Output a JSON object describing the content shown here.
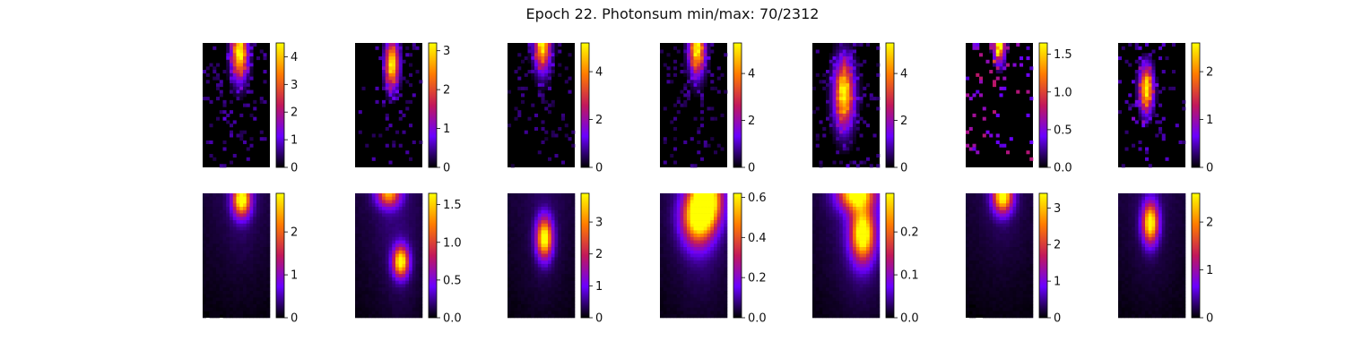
{
  "title": "Epoch 22. Photonsum min/max: 70/2312",
  "colormap": "gnuplot",
  "colormap_stops": [
    "#000000",
    "#6a00ff",
    "#c2185b",
    "#ff7b00",
    "#ffff00"
  ],
  "chart_data": {
    "type": "heatmap",
    "grid": {
      "rows": 2,
      "cols": 7
    },
    "panels": [
      {
        "row": 0,
        "col": 0,
        "kind": "photons",
        "vmax": 4.5,
        "ticks": [
          0,
          1,
          2,
          3,
          4
        ],
        "tick_labels": [
          "0",
          "1",
          "2",
          "3",
          "4"
        ],
        "blobs": [
          {
            "x": 0.55,
            "y": 0.08,
            "amp": 4.5,
            "s": 0.08
          }
        ],
        "noise": 0.5,
        "density": 0.45
      },
      {
        "row": 0,
        "col": 1,
        "kind": "photons",
        "vmax": 3.2,
        "ticks": [
          0,
          1,
          2,
          3
        ],
        "tick_labels": [
          "0",
          "1",
          "2",
          "3"
        ],
        "blobs": [
          {
            "x": 0.55,
            "y": 0.17,
            "amp": 3.2,
            "s": 0.07
          }
        ],
        "noise": 0.35,
        "density": 0.25
      },
      {
        "row": 0,
        "col": 2,
        "kind": "photons",
        "vmax": 5.2,
        "ticks": [
          0,
          2,
          4
        ],
        "tick_labels": [
          "0",
          "2",
          "4"
        ],
        "blobs": [
          {
            "x": 0.52,
            "y": 0.01,
            "amp": 5.0,
            "s": 0.08
          }
        ],
        "noise": 0.5,
        "density": 0.4
      },
      {
        "row": 0,
        "col": 3,
        "kind": "photons",
        "vmax": 5.3,
        "ticks": [
          0,
          2,
          4
        ],
        "tick_labels": [
          "0",
          "2",
          "4"
        ],
        "blobs": [
          {
            "x": 0.55,
            "y": 0.04,
            "amp": 5.2,
            "s": 0.08
          }
        ],
        "noise": 0.5,
        "density": 0.4
      },
      {
        "row": 0,
        "col": 4,
        "kind": "photons",
        "vmax": 5.3,
        "ticks": [
          0,
          2,
          4
        ],
        "tick_labels": [
          "0",
          "2",
          "4"
        ],
        "blobs": [
          {
            "x": 0.47,
            "y": 0.41,
            "amp": 5.1,
            "s": 0.1
          }
        ],
        "noise": 0.5,
        "density": 0.45
      },
      {
        "row": 0,
        "col": 5,
        "kind": "photons",
        "vmax": 1.65,
        "ticks": [
          0.0,
          0.5,
          1.0,
          1.5
        ],
        "tick_labels": [
          "0.0",
          "0.5",
          "1.0",
          "1.5"
        ],
        "blobs": [
          {
            "x": 0.5,
            "y": 0.0,
            "amp": 1.6,
            "s": 0.06
          }
        ],
        "noise": 0.5,
        "density": 0.3
      },
      {
        "row": 0,
        "col": 6,
        "kind": "photons",
        "vmax": 2.6,
        "ticks": [
          0,
          1,
          2
        ],
        "tick_labels": [
          "0",
          "1",
          "2"
        ],
        "blobs": [
          {
            "x": 0.42,
            "y": 0.37,
            "amp": 2.5,
            "s": 0.07
          }
        ],
        "noise": 0.35,
        "density": 0.25
      },
      {
        "row": 1,
        "col": 0,
        "kind": "model",
        "vmax": 2.9,
        "ticks": [
          0,
          1,
          2
        ],
        "tick_labels": [
          "0",
          "1",
          "2"
        ],
        "blobs": [
          {
            "x": 0.58,
            "y": 0.05,
            "amp": 2.85,
            "sx": 0.09,
            "sy": 0.05
          }
        ],
        "halo": 0.35
      },
      {
        "row": 1,
        "col": 1,
        "kind": "model",
        "vmax": 1.65,
        "ticks": [
          0.0,
          0.5,
          1.0,
          1.5
        ],
        "tick_labels": [
          "0.0",
          "0.5",
          "1.0",
          "1.5"
        ],
        "blobs": [
          {
            "x": 0.5,
            "y": 0.0,
            "amp": 1.2,
            "sx": 0.12,
            "sy": 0.04
          },
          {
            "x": 0.68,
            "y": 0.55,
            "amp": 1.6,
            "sx": 0.08,
            "sy": 0.045
          }
        ],
        "halo": 0.3
      },
      {
        "row": 1,
        "col": 2,
        "kind": "model",
        "vmax": 3.9,
        "ticks": [
          0,
          1,
          2,
          3
        ],
        "tick_labels": [
          "0",
          "1",
          "2",
          "3"
        ],
        "blobs": [
          {
            "x": 0.55,
            "y": 0.36,
            "amp": 3.8,
            "sx": 0.08,
            "sy": 0.06
          }
        ],
        "halo": 0.3
      },
      {
        "row": 1,
        "col": 3,
        "kind": "model",
        "vmax": 0.62,
        "ticks": [
          0.0,
          0.2,
          0.4,
          0.6
        ],
        "tick_labels": [
          "0.0",
          "0.2",
          "0.4",
          "0.6"
        ],
        "blobs": [
          {
            "x": 0.7,
            "y": 0.05,
            "amp": 0.6,
            "sx": 0.15,
            "sy": 0.08
          },
          {
            "x": 0.55,
            "y": 0.2,
            "amp": 0.5,
            "sx": 0.16,
            "sy": 0.08
          }
        ],
        "halo": 0.45
      },
      {
        "row": 1,
        "col": 4,
        "kind": "model",
        "vmax": 0.29,
        "ticks": [
          0.0,
          0.1,
          0.2
        ],
        "tick_labels": [
          "0.0",
          "0.1",
          "0.2"
        ],
        "blobs": [
          {
            "x": 0.75,
            "y": 0.33,
            "amp": 0.28,
            "sx": 0.12,
            "sy": 0.08
          },
          {
            "x": 0.65,
            "y": 0.0,
            "amp": 0.27,
            "sx": 0.18,
            "sy": 0.05
          }
        ],
        "halo": 0.45
      },
      {
        "row": 1,
        "col": 5,
        "kind": "model",
        "vmax": 3.4,
        "ticks": [
          0,
          1,
          2,
          3
        ],
        "tick_labels": [
          "0",
          "1",
          "2",
          "3"
        ],
        "blobs": [
          {
            "x": 0.55,
            "y": 0.02,
            "amp": 3.3,
            "sx": 0.1,
            "sy": 0.05
          }
        ],
        "halo": 0.3
      },
      {
        "row": 1,
        "col": 6,
        "kind": "model",
        "vmax": 2.6,
        "ticks": [
          0,
          1,
          2
        ],
        "tick_labels": [
          "0",
          "1",
          "2"
        ],
        "blobs": [
          {
            "x": 0.48,
            "y": 0.24,
            "amp": 2.5,
            "sx": 0.08,
            "sy": 0.06
          }
        ],
        "halo": 0.3
      }
    ]
  }
}
